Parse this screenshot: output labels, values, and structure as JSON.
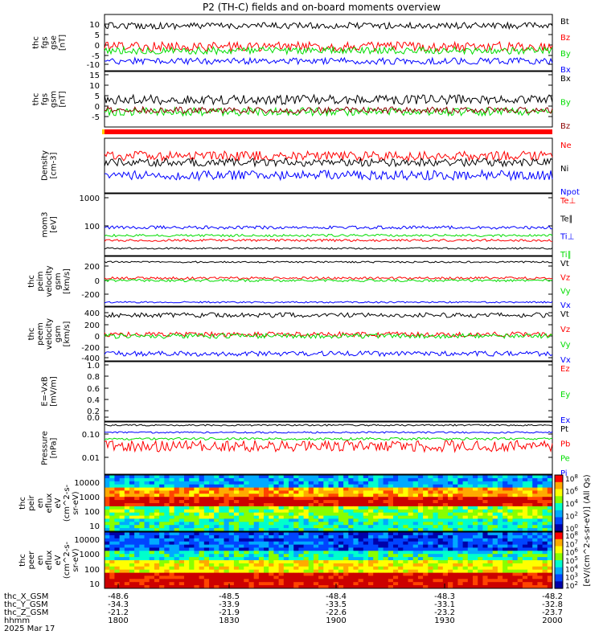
{
  "title": "P2 (TH-C) fields and on-board moments overview",
  "chart_data": [
    {
      "type": "line",
      "panel": "fgs_gse",
      "ylabel": [
        "thc",
        "fgs",
        "gse",
        "[nT]"
      ],
      "yticks": [
        "10",
        "5",
        "0",
        "-5",
        "-10"
      ],
      "ylim": [
        -12,
        14
      ],
      "legend": [
        {
          "name": "Bt",
          "color": "#000000"
        },
        {
          "name": "Bz",
          "color": "#ff0000"
        },
        {
          "name": "By",
          "color": "#00dd00"
        },
        {
          "name": "Bx",
          "color": "#0000ff"
        }
      ]
    },
    {
      "type": "line",
      "panel": "fgs_gsm",
      "ylabel": [
        "thc",
        "fgs",
        "gsm",
        "[nT]"
      ],
      "yticks": [
        "15",
        "10",
        "5",
        "0",
        "-5"
      ],
      "ylim": [
        -8,
        17
      ],
      "legend": [
        {
          "name": "Bx",
          "color": "#000000"
        },
        {
          "name": "By",
          "color": "#00dd00"
        },
        {
          "name": "Bz",
          "color": "#8b0000"
        }
      ]
    },
    {
      "type": "line",
      "panel": "density",
      "ylabel": [
        "Density",
        "[cm-3]"
      ],
      "yticks": [],
      "legend": [
        {
          "name": "Ne",
          "color": "#ff0000"
        },
        {
          "name": "Ni",
          "color": "#000000"
        },
        {
          "name": "Npot",
          "color": "#0000ff"
        }
      ]
    },
    {
      "type": "line",
      "panel": "temperature",
      "ylabel": [
        "mom3",
        "[eV]"
      ],
      "yticks": [
        "1000",
        "100"
      ],
      "scale": "log",
      "legend": [
        {
          "name": "Te⊥",
          "color": "#ff0000"
        },
        {
          "name": "Te∥",
          "color": "#000000"
        },
        {
          "name": "Ti⊥",
          "color": "#0000ff"
        },
        {
          "name": "Ti∥",
          "color": "#00dd00"
        }
      ]
    },
    {
      "type": "line",
      "panel": "peim_velocity",
      "ylabel": [
        "thc",
        "peim",
        "velocity",
        "gsm",
        "[km/s]"
      ],
      "yticks": [
        "200",
        "0",
        "-200"
      ],
      "legend": [
        {
          "name": "Vt",
          "color": "#000000"
        },
        {
          "name": "Vz",
          "color": "#ff0000"
        },
        {
          "name": "Vy",
          "color": "#00dd00"
        },
        {
          "name": "Vx",
          "color": "#0000ff"
        }
      ]
    },
    {
      "type": "line",
      "panel": "peem_velocity",
      "ylabel": [
        "thc",
        "peem",
        "velocity",
        "gsm",
        "[km/s]"
      ],
      "yticks": [
        "400",
        "200",
        "0",
        "-200",
        "-400"
      ],
      "legend": [
        {
          "name": "Vt",
          "color": "#000000"
        },
        {
          "name": "Vz",
          "color": "#ff0000"
        },
        {
          "name": "Vy",
          "color": "#00dd00"
        },
        {
          "name": "Vx",
          "color": "#0000ff"
        }
      ]
    },
    {
      "type": "line",
      "panel": "efield",
      "ylabel": [
        "E=-VxB",
        "[mV/m]"
      ],
      "yticks": [
        "1.0",
        "0.8",
        "0.6",
        "0.4",
        "0.2",
        "0.0"
      ],
      "legend": [
        {
          "name": "Ez",
          "color": "#ff0000"
        },
        {
          "name": "Ey",
          "color": "#00dd00"
        },
        {
          "name": "Ex",
          "color": "#0000ff"
        }
      ]
    },
    {
      "type": "line",
      "panel": "pressure",
      "ylabel": [
        "Pressure",
        "[nPa]"
      ],
      "yticks": [
        "0.10",
        "0.01"
      ],
      "scale": "log",
      "legend": [
        {
          "name": "Pt",
          "color": "#000000"
        },
        {
          "name": "Pb",
          "color": "#ff0000"
        },
        {
          "name": "Pe",
          "color": "#00dd00"
        },
        {
          "name": "Pi",
          "color": "#0000ff"
        }
      ]
    },
    {
      "type": "heatmap",
      "panel": "peir",
      "ylabel": [
        "thc",
        "peir",
        "en",
        "eflux",
        "eV",
        "(cm^2-s-",
        "sr-eV)"
      ],
      "yticks": [
        "10000",
        "1000",
        "100",
        "10"
      ],
      "scale": "log"
    },
    {
      "type": "heatmap",
      "panel": "peer",
      "ylabel": [
        "thc",
        "peer",
        "en",
        "eflux",
        "eV",
        "(cm^2-s-",
        "sr-eV)"
      ],
      "yticks": [
        "10000",
        "1000",
        "100",
        "10"
      ],
      "scale": "log"
    }
  ],
  "colorbars": [
    {
      "ticks": [
        "10^8",
        "10^6",
        "10^4",
        "10^2",
        "10^0"
      ]
    },
    {
      "ticks": [
        "10^8",
        "10^7",
        "10^6",
        "10^5",
        "10^4",
        "10^3",
        "10^2"
      ]
    }
  ],
  "colorbar_label": "[eV/(cm^2-s-sr-eV)] (All Qs)",
  "x_axis": {
    "rows": [
      {
        "label": "thc_X_GSM",
        "values": [
          "-48.6",
          "-48.5",
          "-48.4",
          "-48.3",
          "-48.2"
        ]
      },
      {
        "label": "thc_Y_GSM",
        "values": [
          "-34.3",
          "-33.9",
          "-33.5",
          "-33.1",
          "-32.8"
        ]
      },
      {
        "label": "thc_Z_GSM",
        "values": [
          "-21.2",
          "-21.9",
          "-22.6",
          "-23.2",
          "-23.7"
        ]
      },
      {
        "label": "hhmm",
        "values": [
          "1800",
          "1830",
          "1900",
          "1930",
          "2000"
        ]
      }
    ],
    "date": "2025 Mar 17"
  }
}
